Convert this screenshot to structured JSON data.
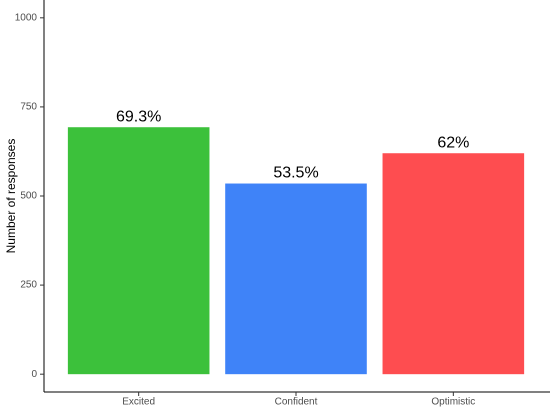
{
  "chart_data": {
    "type": "bar",
    "y_label": "Number of responses",
    "categories": [
      "Excited",
      "Confident",
      "Optimistic"
    ],
    "values": [
      693,
      535,
      620
    ],
    "value_labels": [
      "69.3%",
      "53.5%",
      "62%"
    ],
    "colors": [
      "#3cc13b",
      "#3f83f8",
      "#fe4d50"
    ],
    "ylim": [
      -50,
      1050
    ],
    "yticks": [
      0,
      250,
      500,
      750,
      1000
    ],
    "grid": false
  }
}
